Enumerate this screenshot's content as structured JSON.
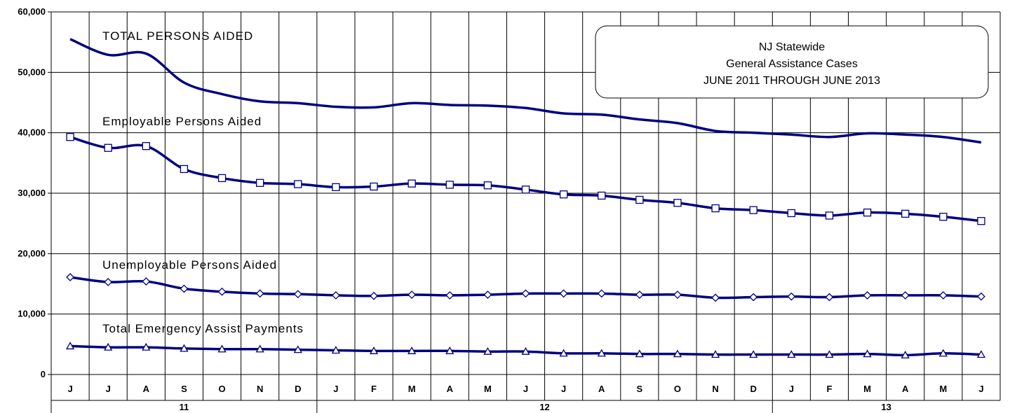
{
  "chart_data": {
    "type": "line",
    "title_lines": [
      "NJ Statewide",
      "General Assistance Cases",
      "JUNE 2011 THROUGH JUNE 2013"
    ],
    "xlabel": "",
    "ylabel": "",
    "ylim": [
      0,
      60000
    ],
    "yticks": [
      0,
      10000,
      20000,
      30000,
      40000,
      50000,
      60000
    ],
    "ytick_labels": [
      "0",
      "10,000",
      "20,000",
      "30,000",
      "40,000",
      "50,000",
      "60,000"
    ],
    "categories": [
      "J",
      "J",
      "A",
      "S",
      "O",
      "N",
      "D",
      "J",
      "F",
      "M",
      "A",
      "M",
      "J",
      "J",
      "A",
      "S",
      "O",
      "N",
      "D",
      "J",
      "F",
      "M",
      "A",
      "M",
      "J"
    ],
    "year_groups": [
      {
        "label": "11",
        "count": 7
      },
      {
        "label": "12",
        "count": 12
      },
      {
        "label": "13",
        "count": 6
      }
    ],
    "grid": true,
    "color": "#000080",
    "series": [
      {
        "name": "TOTAL PERSONS AIDED",
        "marker": "none",
        "values": [
          55500,
          52900,
          53100,
          48300,
          46400,
          45200,
          44900,
          44300,
          44200,
          44900,
          44600,
          44500,
          44100,
          43200,
          43000,
          42200,
          41600,
          40300,
          40000,
          39700,
          39300,
          39900,
          39700,
          39300,
          38400
        ]
      },
      {
        "name": "Employable Persons Aided",
        "marker": "square",
        "values": [
          39300,
          37500,
          37800,
          34000,
          32500,
          31700,
          31500,
          31000,
          31100,
          31600,
          31400,
          31300,
          30600,
          29800,
          29600,
          28900,
          28400,
          27500,
          27200,
          26700,
          26300,
          26800,
          26600,
          26100,
          25400
        ]
      },
      {
        "name": "Unemployable Persons Aided",
        "marker": "diamond",
        "values": [
          16100,
          15300,
          15400,
          14200,
          13700,
          13400,
          13300,
          13100,
          13000,
          13200,
          13100,
          13200,
          13400,
          13400,
          13400,
          13200,
          13200,
          12700,
          12800,
          12900,
          12800,
          13100,
          13100,
          13100,
          12900
        ]
      },
      {
        "name": "Total Emergency Assist Payments",
        "marker": "triangle",
        "values": [
          4700,
          4500,
          4500,
          4300,
          4200,
          4200,
          4100,
          4000,
          3900,
          3900,
          3900,
          3800,
          3800,
          3500,
          3500,
          3400,
          3400,
          3300,
          3300,
          3300,
          3300,
          3400,
          3200,
          3500,
          3300
        ]
      }
    ]
  }
}
